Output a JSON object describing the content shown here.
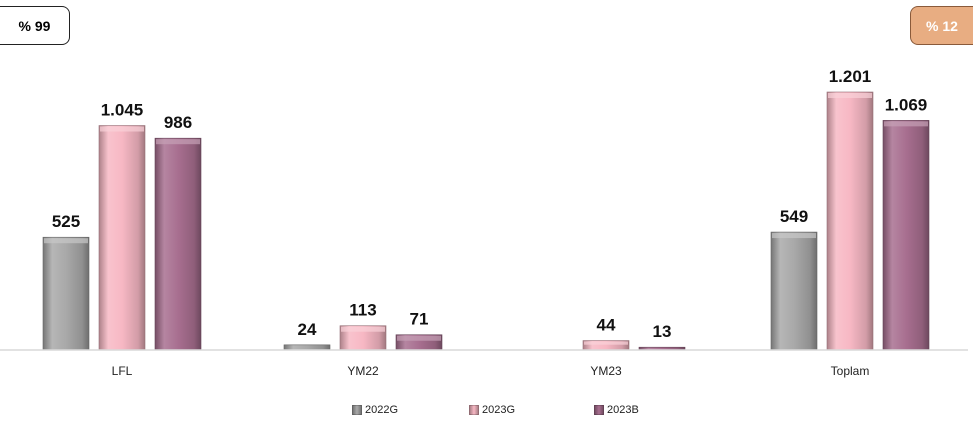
{
  "badges": {
    "left": "% 99",
    "right": "% 12",
    "right_color": "#e8ad82"
  },
  "chart_data": {
    "type": "bar",
    "categories": [
      "LFL",
      "YM22",
      "YM23",
      "Toplam"
    ],
    "series": [
      {
        "name": "2022G",
        "values": [
          525,
          24,
          null,
          549
        ],
        "labels": [
          "525",
          "24",
          "",
          "549"
        ],
        "color": "#a9a9a9"
      },
      {
        "name": "2023G",
        "values": [
          1045,
          113,
          44,
          1201
        ],
        "labels": [
          "1.045",
          "113",
          "44",
          "1.201"
        ],
        "color": "#f7b8c4"
      },
      {
        "name": "2023B",
        "values": [
          986,
          71,
          13,
          1069
        ],
        "labels": [
          "986",
          "71",
          "13",
          "1.069"
        ],
        "color": "#a86f90"
      }
    ],
    "ylim": [
      0,
      1201
    ],
    "grid": false,
    "legend": "bottom"
  }
}
